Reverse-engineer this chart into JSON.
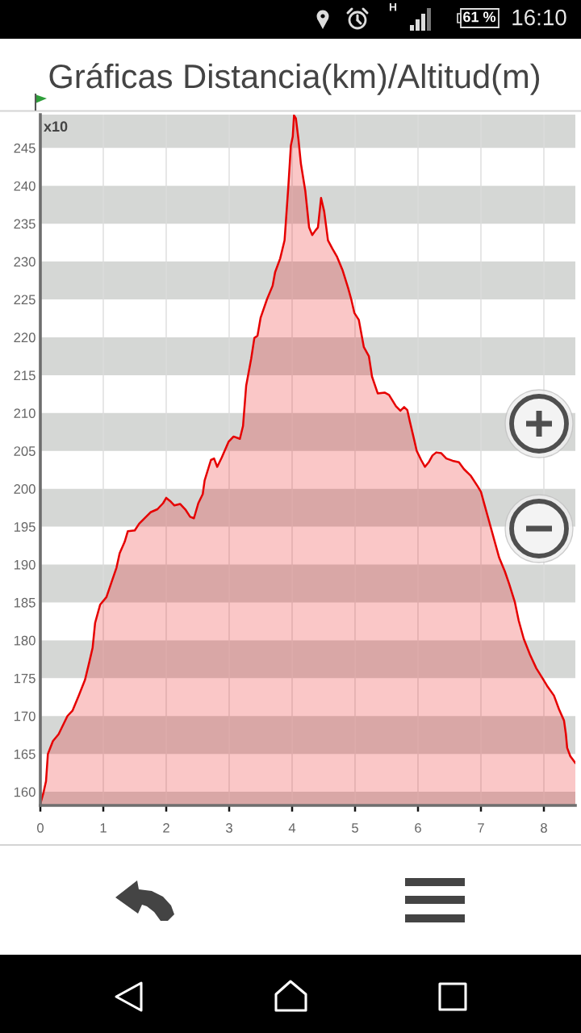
{
  "chart_data": {
    "type": "area",
    "title": "Gráficas Distancia(km)/Altitud(m)",
    "ylabel": "x10",
    "annotations": [
      "H",
      "61 %",
      "16:10"
    ],
    "series": [
      {
        "color": "#e60000",
        "x": [
          0.0,
          0.05,
          0.09,
          0.12,
          0.2,
          0.29,
          0.43,
          0.51,
          0.61,
          0.71,
          0.78,
          0.83,
          0.87,
          0.95,
          1.05,
          1.12,
          1.21,
          1.26,
          1.34,
          1.39,
          1.5,
          1.57,
          1.75,
          1.86,
          1.95,
          2.0,
          2.06,
          2.13,
          2.22,
          2.31,
          2.38,
          2.44,
          2.51,
          2.58,
          2.61,
          2.71,
          2.76,
          2.81,
          2.88,
          2.99,
          3.07,
          3.17,
          3.22,
          3.27,
          3.35,
          3.4,
          3.45,
          3.5,
          3.6,
          3.69,
          3.73,
          3.81,
          3.88,
          3.94,
          3.98,
          4.01,
          4.03,
          4.06,
          4.1,
          4.14,
          4.21,
          4.27,
          4.32,
          4.37,
          4.41,
          4.46,
          4.51,
          4.57,
          4.64,
          4.71,
          4.8,
          4.89,
          4.94,
          4.99,
          5.06,
          5.14,
          5.22,
          5.27,
          5.36,
          5.47,
          5.54,
          5.65,
          5.72,
          5.78,
          5.83,
          5.87,
          5.93,
          5.98,
          6.05,
          6.11,
          6.17,
          6.23,
          6.29,
          6.37,
          6.45,
          6.55,
          6.65,
          6.73,
          6.84,
          6.95,
          7.0,
          7.06,
          7.13,
          7.21,
          7.29,
          7.38,
          7.45,
          7.54,
          7.6,
          7.68,
          7.78,
          7.88,
          7.97,
          8.05,
          8.16,
          8.24,
          8.32,
          8.35,
          8.37,
          8.42,
          8.5
        ],
        "values": [
          158.4,
          159.9,
          161.4,
          165.0,
          166.7,
          167.6,
          170.0,
          170.7,
          172.7,
          174.8,
          177.2,
          179.0,
          182.3,
          184.7,
          185.7,
          187.4,
          189.6,
          191.5,
          193.0,
          194.4,
          194.5,
          195.4,
          196.9,
          197.3,
          198.1,
          198.8,
          198.4,
          197.8,
          198.0,
          197.2,
          196.3,
          196.1,
          198.1,
          199.3,
          201.1,
          203.8,
          204.0,
          202.9,
          204.1,
          206.2,
          206.9,
          206.6,
          208.3,
          213.6,
          217.2,
          219.9,
          220.2,
          222.6,
          225.0,
          226.8,
          228.6,
          230.4,
          232.8,
          239.9,
          245.3,
          246.5,
          249.3,
          248.9,
          246.2,
          242.9,
          239.3,
          234.5,
          233.5,
          234.1,
          234.5,
          238.4,
          236.6,
          232.8,
          231.7,
          230.7,
          228.9,
          226.5,
          225.0,
          223.2,
          222.3,
          218.7,
          217.5,
          214.8,
          212.6,
          212.7,
          212.4,
          210.9,
          210.3,
          210.8,
          210.4,
          208.9,
          206.8,
          205.0,
          203.8,
          202.9,
          203.5,
          204.4,
          204.8,
          204.7,
          204.0,
          203.7,
          203.5,
          202.6,
          201.7,
          200.3,
          199.6,
          197.8,
          195.7,
          193.3,
          190.9,
          189.1,
          187.4,
          185.0,
          182.6,
          180.2,
          178.1,
          176.3,
          175.1,
          174.0,
          172.7,
          170.9,
          169.4,
          167.6,
          165.8,
          164.7,
          163.8
        ]
      }
    ],
    "xlim": [
      0,
      8.5
    ],
    "ylim": [
      158.2,
      249.4
    ],
    "xticks": [
      0,
      1,
      2,
      3,
      4,
      5,
      6,
      7,
      8
    ],
    "yticks": [
      160,
      165,
      170,
      175,
      180,
      185,
      190,
      195,
      200,
      205,
      210,
      215,
      220,
      225,
      230,
      235,
      240,
      245
    ],
    "grid": "x",
    "bands": [
      {
        "axis": "y",
        "from": 245,
        "to": 249.4,
        "color": "#d5d7d5"
      },
      {
        "axis": "y",
        "from": 235,
        "to": 240,
        "color": "#d5d7d5"
      },
      {
        "axis": "y",
        "from": 225,
        "to": 230,
        "color": "#d5d7d5"
      },
      {
        "axis": "y",
        "from": 215,
        "to": 220,
        "color": "#d5d7d5"
      },
      {
        "axis": "y",
        "from": 205,
        "to": 210,
        "color": "#d5d7d5"
      },
      {
        "axis": "y",
        "from": 195,
        "to": 200,
        "color": "#d5d7d5"
      },
      {
        "axis": "y",
        "from": 185,
        "to": 190,
        "color": "#d5d7d5"
      },
      {
        "axis": "y",
        "from": 175,
        "to": 180,
        "color": "#d5d7d5"
      },
      {
        "axis": "y",
        "from": 165,
        "to": 170,
        "color": "#d5d7d5"
      },
      {
        "axis": "y",
        "from": 158.2,
        "to": 160,
        "color": "#d5d7d5"
      }
    ]
  }
}
